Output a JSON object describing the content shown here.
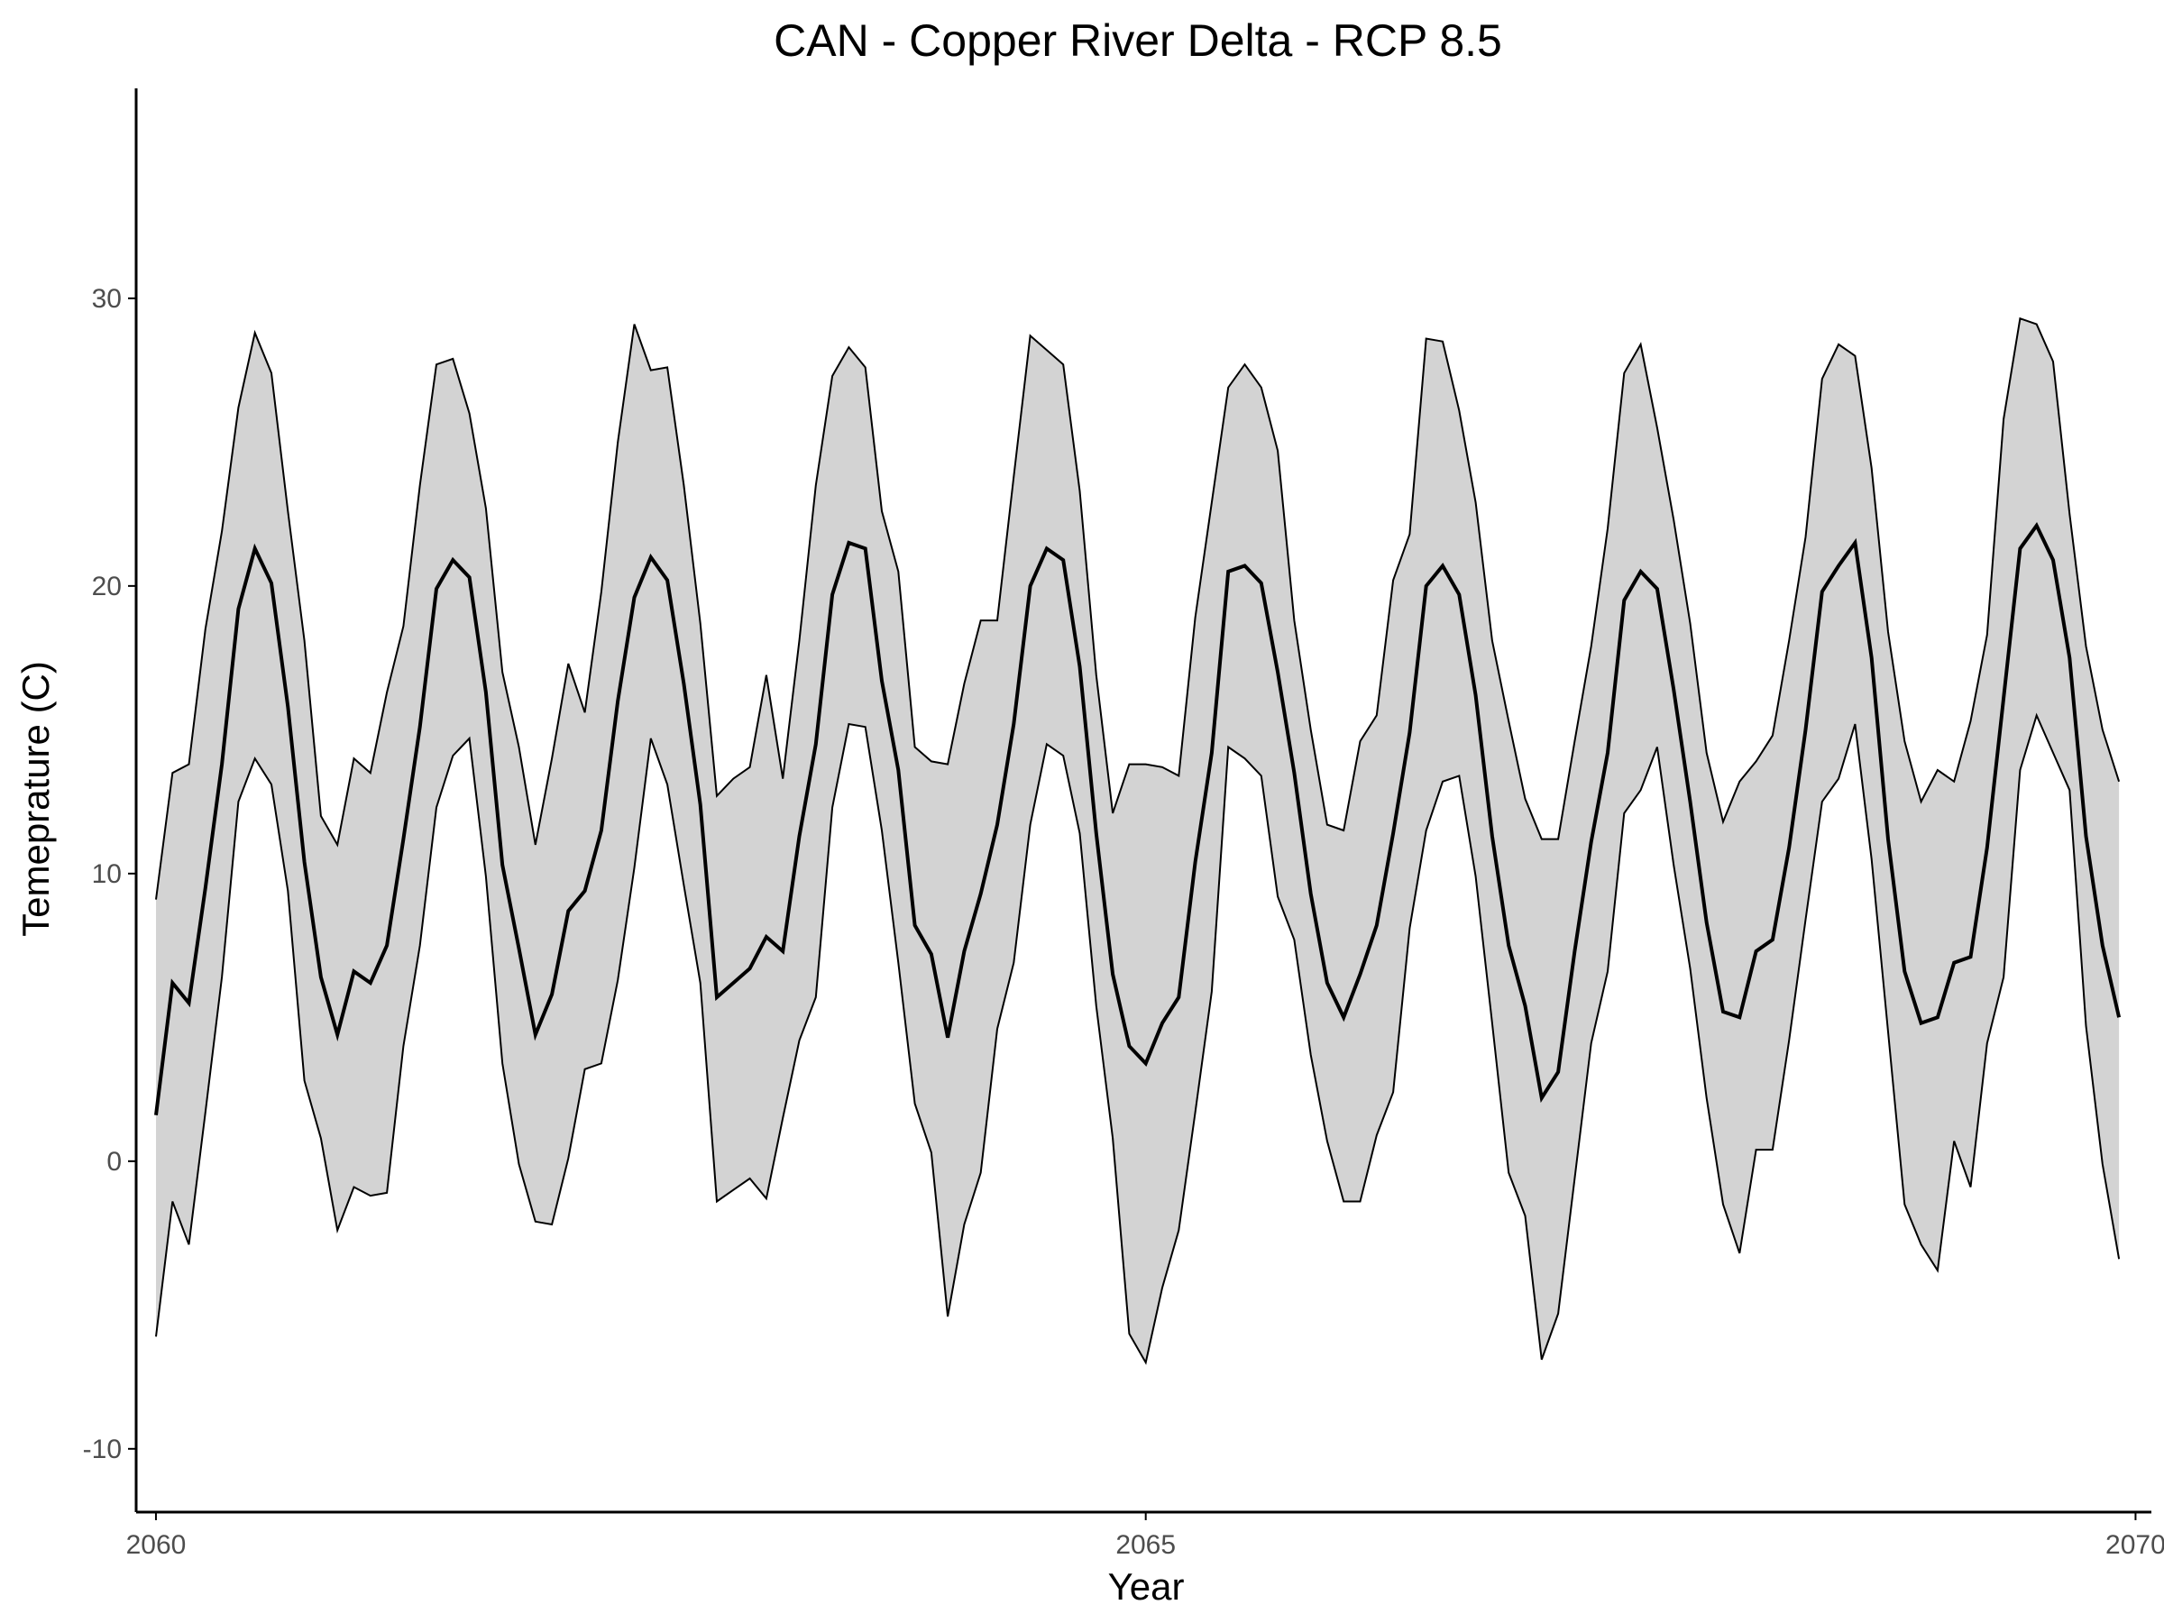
{
  "chart_data": {
    "type": "line",
    "title": "CAN - Copper River Delta - RCP 8.5",
    "xlabel": "Year",
    "ylabel": "Temeprature (C)",
    "xlim": [
      2059.9,
      2070.08
    ],
    "ylim": [
      -12.2,
      37.3
    ],
    "x_ticks": [
      {
        "value": 2060,
        "label": "2060"
      },
      {
        "value": 2065,
        "label": "2065"
      },
      {
        "value": 2070,
        "label": "2070"
      }
    ],
    "y_ticks": [
      {
        "value": -10,
        "label": "-10"
      },
      {
        "value": 0,
        "label": "0"
      },
      {
        "value": 10,
        "label": "10"
      },
      {
        "value": 20,
        "label": "20"
      },
      {
        "value": 30,
        "label": "30"
      }
    ],
    "grid": false,
    "legend": "none",
    "x_start_year": 2060,
    "points_per_year": 12,
    "series": [
      {
        "role": "upper",
        "values": [
          9.1,
          13.5,
          13.8,
          18.5,
          21.9,
          26.2,
          28.8,
          27.4,
          22.6,
          18.1,
          12.0,
          11.0,
          14.0,
          13.5,
          16.3,
          18.6,
          23.5,
          27.7,
          27.9,
          26.0,
          22.7,
          17.0,
          14.4,
          11.0,
          14.0,
          17.3,
          15.6,
          19.8,
          25.0,
          29.1,
          27.5,
          27.6,
          23.5,
          18.7,
          12.7,
          13.3,
          13.7,
          16.9,
          13.3,
          18.1,
          23.5,
          27.3,
          28.3,
          27.6,
          22.6,
          20.5,
          14.4,
          13.9,
          13.8,
          16.6,
          18.8,
          18.8,
          23.8,
          28.7,
          28.2,
          27.7,
          23.3,
          16.9,
          12.1,
          13.8,
          13.8,
          13.7,
          13.4,
          18.9,
          22.9,
          26.9,
          27.7,
          26.9,
          24.7,
          18.8,
          15.0,
          11.7,
          11.5,
          14.6,
          15.5,
          20.2,
          21.8,
          28.6,
          28.5,
          26.1,
          22.9,
          18.1,
          15.3,
          12.6,
          11.2,
          11.2,
          14.6,
          17.9,
          22.0,
          27.4,
          28.4,
          25.5,
          22.3,
          18.7,
          14.2,
          11.8,
          13.2,
          13.9,
          14.8,
          18.1,
          21.7,
          27.2,
          28.4,
          28.0,
          24.1,
          18.4,
          14.6,
          12.5,
          13.6,
          13.2,
          15.3,
          18.3,
          25.8,
          29.3,
          29.1,
          27.8,
          22.5,
          17.9,
          15.0,
          13.2
        ]
      },
      {
        "role": "mean",
        "values": [
          1.6,
          6.2,
          5.5,
          9.5,
          13.8,
          19.2,
          21.3,
          20.1,
          15.8,
          10.4,
          6.4,
          4.4,
          6.6,
          6.2,
          7.5,
          11.2,
          15.1,
          19.9,
          20.9,
          20.3,
          16.3,
          10.3,
          7.4,
          4.4,
          5.8,
          8.7,
          9.4,
          11.5,
          16.0,
          19.6,
          21.0,
          20.2,
          16.6,
          12.4,
          5.7,
          6.2,
          6.7,
          7.8,
          7.3,
          11.3,
          14.5,
          19.7,
          21.5,
          21.3,
          16.7,
          13.6,
          8.2,
          7.2,
          4.3,
          7.3,
          9.3,
          11.7,
          15.2,
          20.0,
          21.3,
          20.9,
          17.2,
          11.4,
          6.5,
          4.0,
          3.4,
          4.8,
          5.7,
          10.4,
          14.2,
          20.5,
          20.7,
          20.1,
          17.0,
          13.5,
          9.3,
          6.2,
          5.0,
          6.5,
          8.2,
          11.4,
          14.9,
          20.0,
          20.7,
          19.7,
          16.2,
          11.3,
          7.5,
          5.4,
          2.2,
          3.1,
          7.3,
          11.1,
          14.2,
          19.5,
          20.5,
          19.9,
          16.4,
          12.5,
          8.3,
          5.2,
          5.0,
          7.3,
          7.7,
          10.9,
          15.0,
          19.8,
          20.7,
          21.5,
          17.5,
          11.2,
          6.6,
          4.8,
          5.0,
          6.9,
          7.1,
          10.9,
          16.1,
          21.3,
          22.1,
          20.9,
          17.5,
          11.3,
          7.5,
          5.0
        ]
      },
      {
        "role": "lower",
        "values": [
          -6.1,
          -1.4,
          -2.9,
          1.7,
          6.4,
          12.5,
          14.0,
          13.1,
          9.4,
          2.8,
          0.8,
          -2.4,
          -0.9,
          -1.2,
          -1.1,
          4.0,
          7.5,
          12.3,
          14.1,
          14.7,
          9.9,
          3.4,
          -0.1,
          -2.1,
          -2.2,
          0.1,
          3.2,
          3.4,
          6.3,
          10.2,
          14.7,
          13.1,
          9.6,
          6.2,
          -1.4,
          -1.0,
          -0.6,
          -1.3,
          1.5,
          4.2,
          5.7,
          12.3,
          15.2,
          15.1,
          11.5,
          6.9,
          2.0,
          0.3,
          -5.4,
          -2.2,
          -0.4,
          4.6,
          6.9,
          11.7,
          14.5,
          14.1,
          11.4,
          5.4,
          0.8,
          -6.0,
          -7.0,
          -4.4,
          -2.4,
          1.7,
          5.9,
          14.4,
          14.0,
          13.4,
          9.2,
          7.7,
          3.7,
          0.7,
          -1.4,
          -1.4,
          0.9,
          2.4,
          8.1,
          11.5,
          13.2,
          13.4,
          9.9,
          4.8,
          -0.4,
          -1.9,
          -6.9,
          -5.3,
          -0.6,
          4.1,
          6.6,
          12.1,
          12.9,
          14.4,
          10.3,
          6.7,
          2.2,
          -1.5,
          -3.2,
          0.4,
          0.4,
          4.2,
          8.4,
          12.5,
          13.3,
          15.2,
          10.5,
          4.5,
          -1.5,
          -2.9,
          -3.8,
          0.7,
          -0.9,
          4.1,
          6.4,
          13.6,
          15.5,
          14.2,
          12.9,
          4.7,
          -0.1,
          -3.4
        ]
      }
    ]
  }
}
